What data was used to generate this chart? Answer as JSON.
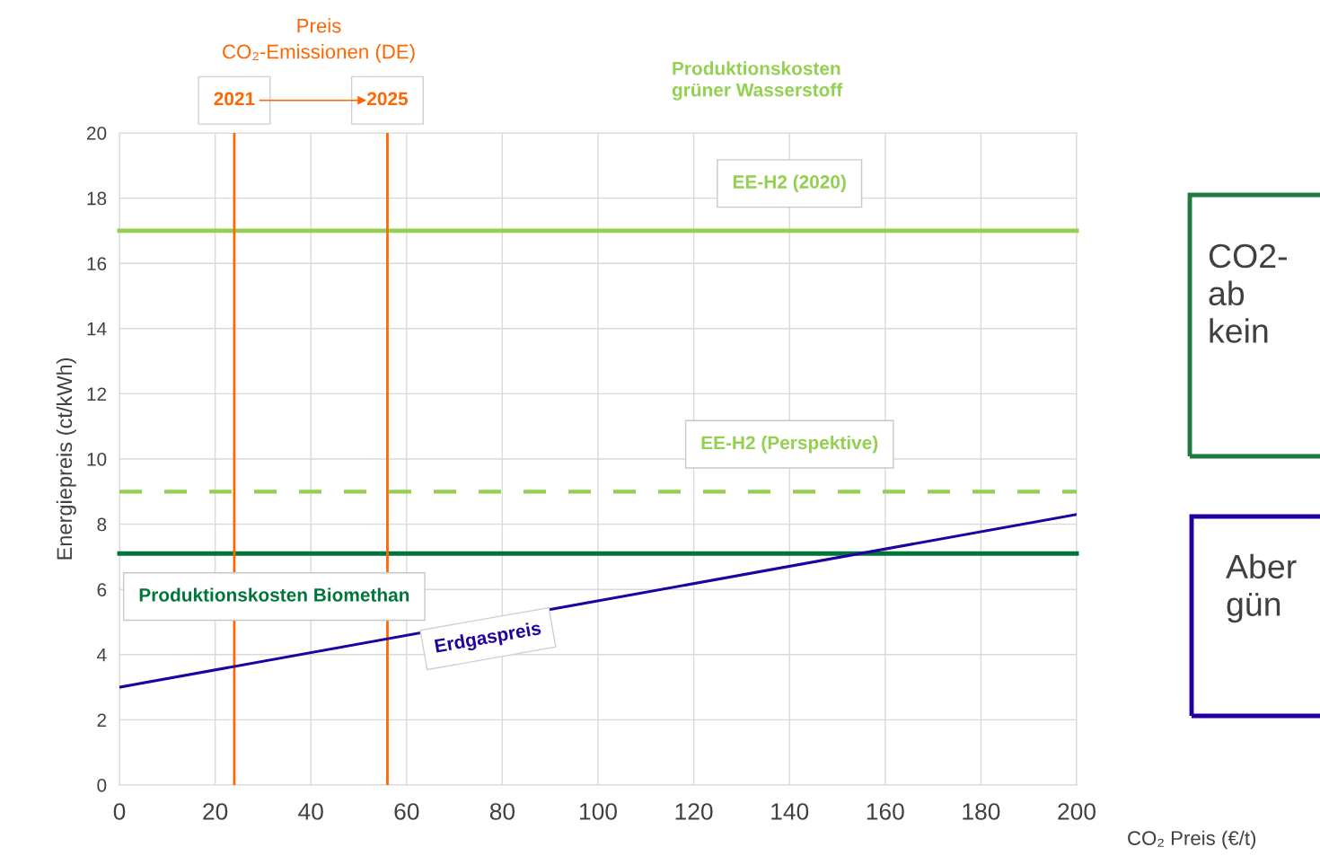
{
  "chart_data": {
    "type": "line",
    "xlabel": "CO₂ Preis (€/t)",
    "ylabel": "Energiepreis (ct/kWh)",
    "xlim": [
      0,
      200
    ],
    "xticks": [
      0,
      20,
      40,
      60,
      80,
      100,
      120,
      140,
      160,
      180,
      200
    ],
    "ylim": [
      0,
      20
    ],
    "yticks": [
      0,
      2,
      4,
      6,
      8,
      10,
      12,
      14,
      16,
      18,
      20
    ],
    "grid": true,
    "marker": "none",
    "series": [
      {
        "name": "Erdgaspreis",
        "color": "#2200a0",
        "x": [
          0,
          200
        ],
        "values": [
          3,
          8.3
        ],
        "line_style": "solid"
      }
    ],
    "ref_lines": [
      {
        "axis": "y",
        "value": 17,
        "label": "EE-H2 (2020)",
        "color": "#92d050",
        "line_style": "solid"
      },
      {
        "axis": "y",
        "value": 9,
        "label": "EE-H2 (Perspektive)",
        "color": "#92d050",
        "line_style": "dashed"
      },
      {
        "axis": "y",
        "value": 7.1,
        "label": "Produktionskosten Biomethan",
        "color": "#00753a",
        "line_style": "solid"
      },
      {
        "axis": "x",
        "value": 24,
        "color": "#ff6600",
        "line_style": "solid"
      },
      {
        "axis": "x",
        "value": 56,
        "color": "#ff6600",
        "line_style": "solid"
      }
    ],
    "annotations": [
      "Preis\nCO₂-Emissionen (DE)",
      "Produktionskosten\ngrüner Wasserstoff",
      "CO2-\nab\nkein",
      "Aber\ngün",
      "2021",
      "2025"
    ]
  }
}
